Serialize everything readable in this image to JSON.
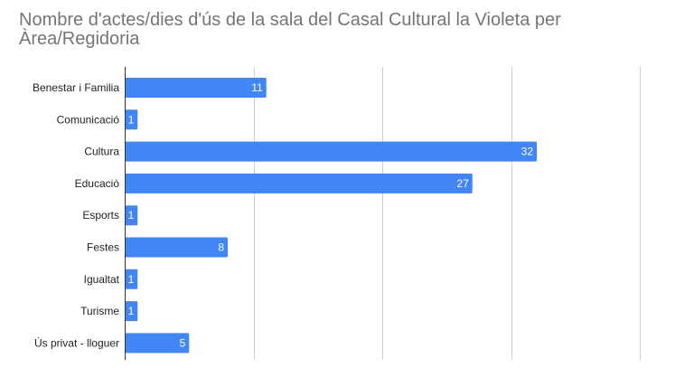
{
  "chart_data": {
    "type": "bar",
    "orientation": "horizontal",
    "title": "Nombre d'actes/dies d'ús de la sala del Casal Cultural la Violeta per Àrea/Regidoria",
    "categories": [
      "Benestar i Familia",
      "Comunicació",
      "Cultura",
      "Educació",
      "Esports",
      "Festes",
      "Igualtat",
      "Turisme",
      "Ús privat - lloguer"
    ],
    "values": [
      11,
      1,
      32,
      27,
      1,
      8,
      1,
      1,
      5
    ],
    "xlim": [
      0,
      40
    ],
    "grid": true,
    "data_labels": true,
    "bar_color": "#4285f4",
    "grid_color": "#cccccc",
    "axis_color": "#333333"
  }
}
